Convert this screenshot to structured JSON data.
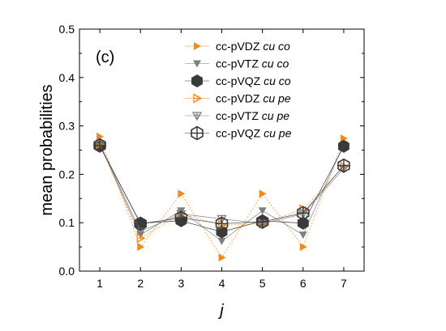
{
  "chart_data": {
    "type": "line",
    "panel_label": "(c)",
    "xlabel": "j",
    "ylabel": "mean probabilities",
    "xlim": [
      0.5,
      7.5
    ],
    "ylim": [
      0.0,
      0.5
    ],
    "x_ticks": [
      1,
      2,
      3,
      4,
      5,
      6,
      7
    ],
    "y_ticks": [
      "0.0",
      "0.1",
      "0.2",
      "0.3",
      "0.4",
      "0.5"
    ],
    "grid": false,
    "legend_placement": "top-center",
    "x": [
      1,
      2,
      3,
      4,
      5,
      6,
      7
    ],
    "series": [
      {
        "label_main": "cc-pVDZ ",
        "label_italic": "cu co",
        "color": "#f08a1c",
        "marker": "triangle-right",
        "values": [
          0.278,
          0.05,
          0.16,
          0.028,
          0.16,
          0.05,
          0.274
        ]
      },
      {
        "label_main": "cc-pVTZ ",
        "label_italic": "cu co",
        "color": "#7f7f7f",
        "marker": "triangle-down",
        "values": [
          0.262,
          0.075,
          0.125,
          0.062,
          0.125,
          0.075,
          0.262
        ]
      },
      {
        "label_main": "cc-pVQZ ",
        "label_italic": "cu co",
        "color": "#3a3a3a",
        "marker": "hexagon",
        "values": [
          0.258,
          0.099,
          0.104,
          0.081,
          0.104,
          0.099,
          0.258
        ]
      },
      {
        "label_main": "cc-pVDZ ",
        "label_italic": "cu pe",
        "color": "#f08a1c",
        "marker": "triangle-right-cross",
        "values": [
          0.262,
          0.068,
          0.118,
          0.095,
          0.098,
          0.128,
          0.216
        ]
      },
      {
        "label_main": "cc-pVTZ ",
        "label_italic": "cu pe",
        "color": "#7f7f7f",
        "marker": "triangle-down-cross",
        "values": [
          0.262,
          0.082,
          0.118,
          0.108,
          0.098,
          0.118,
          0.212
        ]
      },
      {
        "label_main": "cc-pVQZ ",
        "label_italic": "cu pe",
        "color": "#3a3a3a",
        "marker": "hexagon-cross",
        "values": [
          0.26,
          0.098,
          0.11,
          0.098,
          0.102,
          0.12,
          0.218
        ]
      }
    ]
  }
}
